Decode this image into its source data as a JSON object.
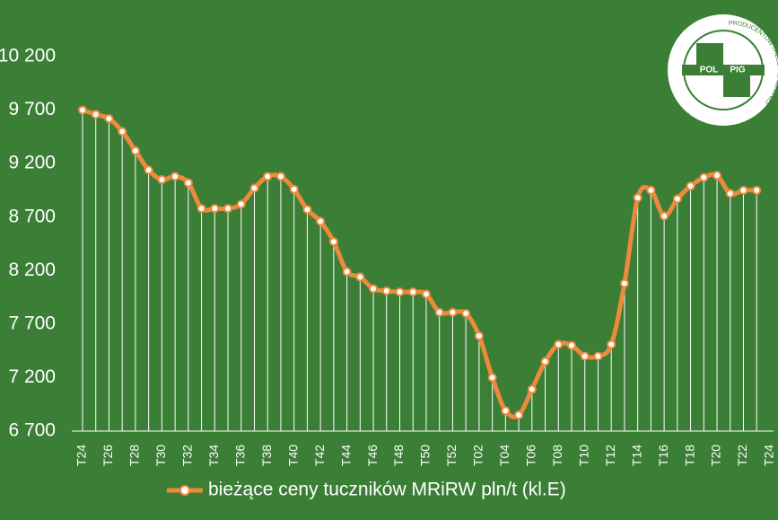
{
  "chart_data": {
    "type": "line",
    "categories": [
      "T24",
      null,
      "T26",
      null,
      "T28",
      null,
      "T30",
      null,
      "T32",
      null,
      "T34",
      null,
      "T36",
      null,
      "T38",
      null,
      "T40",
      null,
      "T42",
      null,
      "T44",
      null,
      "T46",
      null,
      "T48",
      null,
      "T50",
      null,
      "T52",
      null,
      "T02",
      null,
      "T04",
      null,
      "T06",
      null,
      "T08",
      null,
      "T10",
      null,
      "T12",
      null,
      "T14",
      null,
      "T16",
      null,
      "T18",
      null,
      "T20",
      null,
      "T22",
      null,
      "T24"
    ],
    "series": [
      {
        "name": "bieżące ceny tuczników MRiRW pln/t (kl.E)",
        "color": "#ef8a3c",
        "values": [
          9700,
          9660,
          9620,
          9500,
          9320,
          9140,
          9050,
          9080,
          9020,
          8780,
          8780,
          8780,
          8820,
          8970,
          9080,
          9080,
          8960,
          8770,
          8660,
          8470,
          8190,
          8140,
          8030,
          8010,
          8000,
          8000,
          7980,
          7810,
          7810,
          7800,
          7590,
          7200,
          6890,
          6850,
          7090,
          7350,
          7510,
          7500,
          7400,
          7400,
          7510,
          8080,
          8880,
          8950,
          8710,
          8870,
          8990,
          9070,
          9090,
          8920,
          8950,
          8950,
          null
        ]
      }
    ],
    "ylim": [
      6700,
      10200
    ],
    "yticks": [
      {
        "value": 6700,
        "label": "6 700"
      },
      {
        "value": 7200,
        "label": "7 200"
      },
      {
        "value": 7700,
        "label": "7 700"
      },
      {
        "value": 8200,
        "label": "8 200"
      },
      {
        "value": 8700,
        "label": "8 700"
      },
      {
        "value": 9200,
        "label": "9 200"
      },
      {
        "value": 9700,
        "label": "9 700"
      },
      {
        "value": 10200,
        "label": "10 200"
      }
    ],
    "grid": false,
    "drop_lines": true,
    "legend": "bottom",
    "logo": {
      "left": "POL",
      "right": "PIG",
      "ring_top": "KRAJOWY ZWIĄZEK PRACODAWCÓW",
      "ring_right": "PRODUCENTÓW TRZODY CHLEWNEJ"
    }
  }
}
